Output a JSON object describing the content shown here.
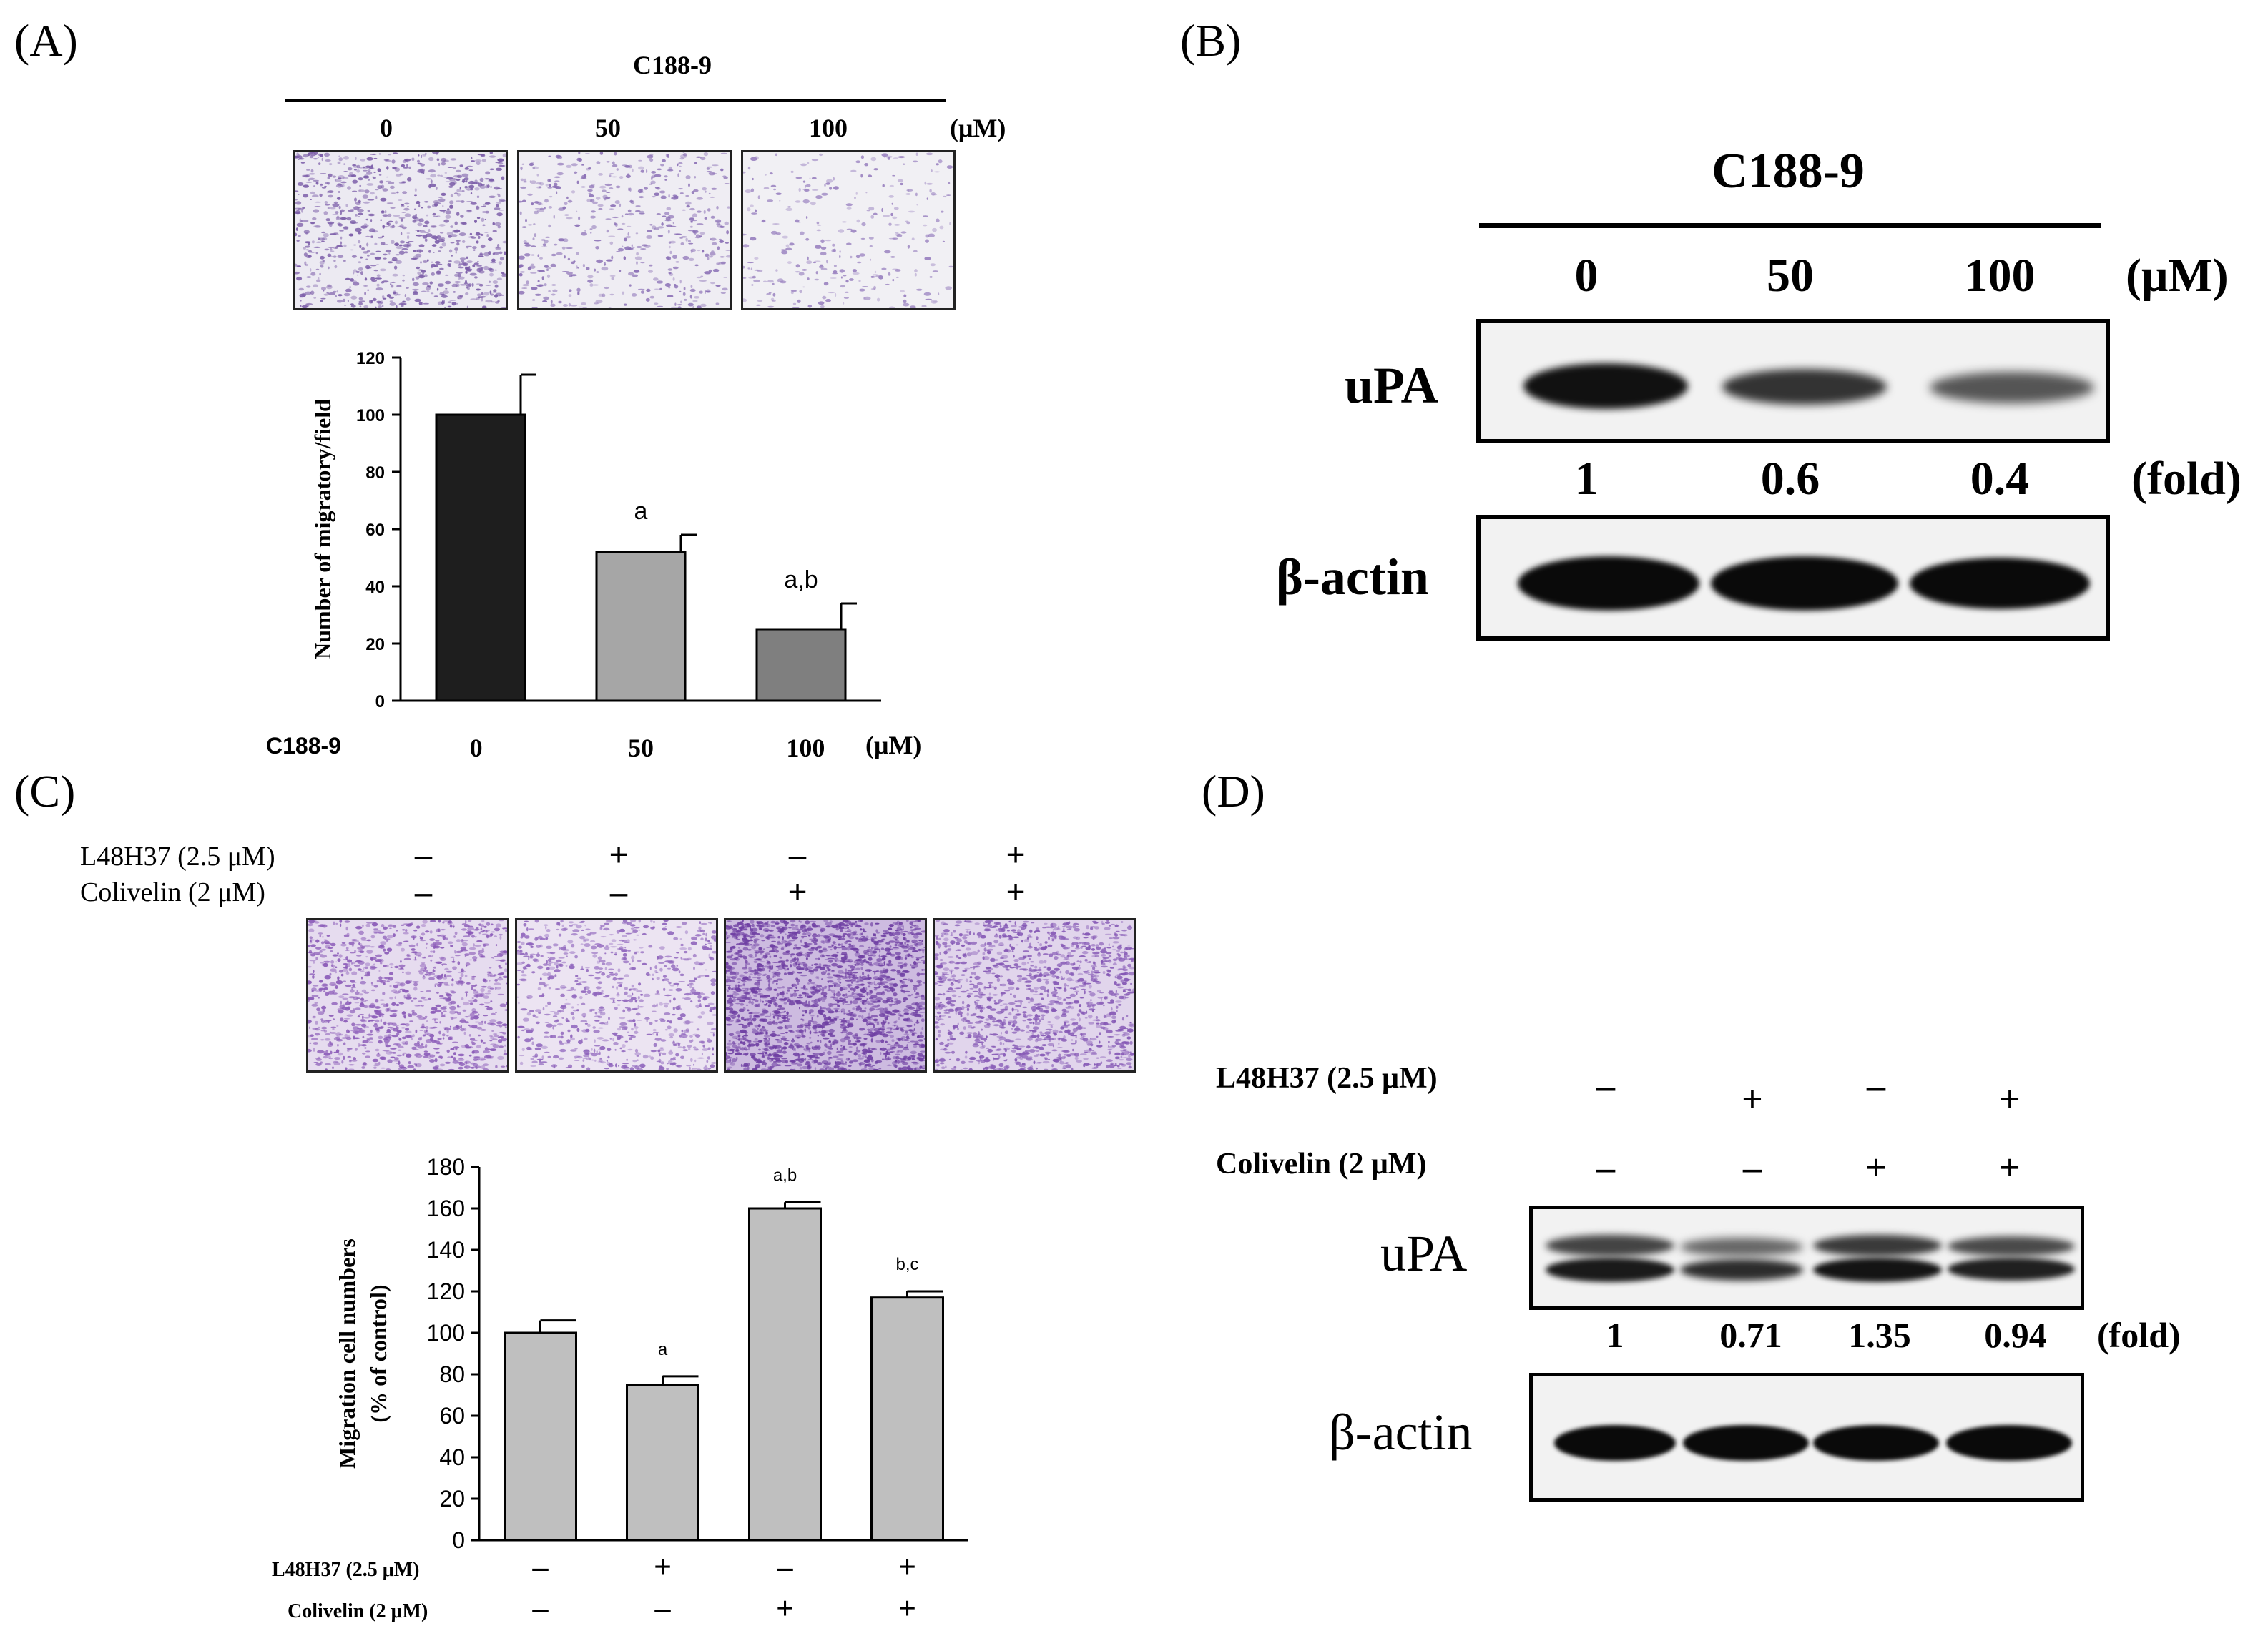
{
  "panels": {
    "A": {
      "label": "(A)",
      "header": "C188-9",
      "doses": [
        "0",
        "50",
        "100"
      ],
      "unit": "(μM)",
      "micro_colors": [
        "#7b5ca8",
        "#8a6fb5",
        "#9a82c0"
      ],
      "chart_data": {
        "type": "bar",
        "categories": [
          "0",
          "50",
          "100"
        ],
        "values": [
          100,
          52,
          25
        ],
        "errors": [
          14,
          6,
          9
        ],
        "annotations": [
          "",
          "a",
          "a,b"
        ],
        "bar_colors": [
          "#1e1e1e",
          "#a6a6a6",
          "#7f7f7f"
        ],
        "ylabel": "Number of migratory/field",
        "yticks": [
          "0",
          "20",
          "40",
          "60",
          "80",
          "100",
          "120"
        ],
        "ylim": [
          0,
          120
        ],
        "xlabel_left": "C188-9",
        "xunit": "(μM)"
      }
    },
    "B": {
      "label": "(B)",
      "header": "C188-9",
      "doses": [
        "0",
        "50",
        "100"
      ],
      "unit": "(μM)",
      "row1": "uPA",
      "row2": "β-actin",
      "fold_values": [
        "1",
        "0.6",
        "0.4"
      ],
      "fold_unit": "(fold)",
      "upa_intensity": [
        1,
        0.6,
        0.4
      ]
    },
    "C": {
      "label": "(C)",
      "treat1": "L48H37 (2.5 μM)",
      "treat2": "Colivelin  (2 μM)",
      "signs1": [
        "–",
        "+",
        "–",
        "+"
      ],
      "signs2": [
        "–",
        "–",
        "+",
        "+"
      ],
      "chart_data": {
        "type": "bar",
        "categories": [
          "1",
          "2",
          "3",
          "4"
        ],
        "values": [
          100,
          75,
          160,
          117
        ],
        "errors": [
          6,
          4,
          3,
          3
        ],
        "annotations": [
          "",
          "a",
          "a,b",
          "b,c"
        ],
        "bar_color": "#bfbfbf",
        "ylabel_line1": "Migration cell numbers",
        "ylabel_line2": "(% of control)",
        "yticks": [
          "0",
          "20",
          "40",
          "60",
          "80",
          "100",
          "120",
          "140",
          "160",
          "180"
        ],
        "ylim": [
          0,
          180
        ],
        "row1_label": "L48H37 (2.5 μM)",
        "row2_label": "Colivelin (2 μM)"
      }
    },
    "D": {
      "label": "(D)",
      "treat1": "L48H37 (2.5 μM)",
      "treat2": "Colivelin  (2 μM)",
      "signs1": [
        "–",
        "+",
        "–",
        "+"
      ],
      "signs2": [
        "–",
        "–",
        "+",
        "+"
      ],
      "row1": "uPA",
      "row2": "β-actin",
      "fold_values": [
        "1",
        "0.71",
        "1.35",
        "0.94"
      ],
      "fold_unit": "(fold)"
    }
  }
}
